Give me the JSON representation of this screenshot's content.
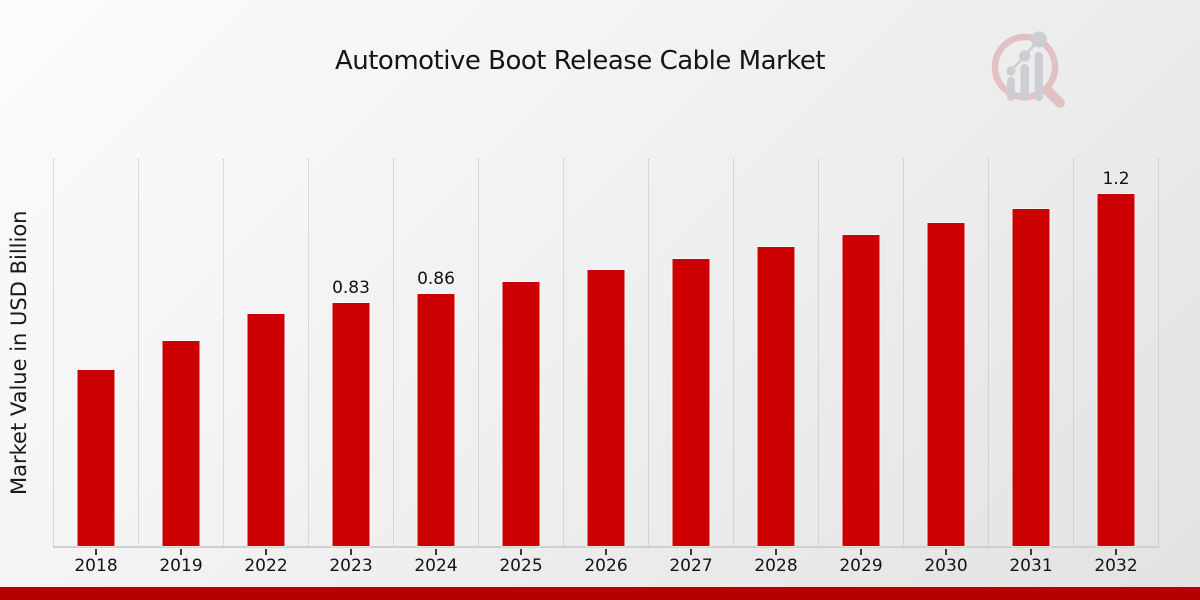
{
  "page": {
    "title": "Automotive Boot Release Cable Market",
    "y_axis_label": "Market Value in USD Billion"
  },
  "chart_data": {
    "type": "bar",
    "title": "Automotive Boot Release Cable Market",
    "xlabel": "",
    "ylabel": "Market Value in USD Billion",
    "unit": "USD Billion",
    "categories": [
      "2018",
      "2019",
      "2022",
      "2023",
      "2024",
      "2025",
      "2026",
      "2027",
      "2028",
      "2029",
      "2030",
      "2031",
      "2032"
    ],
    "values": [
      0.6,
      0.7,
      0.79,
      0.83,
      0.86,
      0.9,
      0.94,
      0.98,
      1.02,
      1.06,
      1.1,
      1.15,
      1.2
    ],
    "bar_labels": [
      "",
      "",
      "",
      "0.83",
      "0.86",
      "",
      "",
      "",
      "",
      "",
      "",
      "",
      "1.2"
    ],
    "ylim": [
      0,
      1.32
    ],
    "grid": "vertical-dotted-column-separators",
    "legend": "none",
    "bar_color": "#cc0000"
  },
  "colors": {
    "bar": "#cc0000",
    "bottom_strip": "#b70000",
    "background_start": "#fcfcfc",
    "background_end": "#e2e2e3",
    "gridline": "#bdbdbd",
    "axis_line": "#cfcfcf",
    "text": "#141414",
    "logo_ring": "#e2bec2",
    "logo_glyph": "#cbccd1"
  },
  "branding": {
    "logo_name": "market-research-future-logo"
  }
}
